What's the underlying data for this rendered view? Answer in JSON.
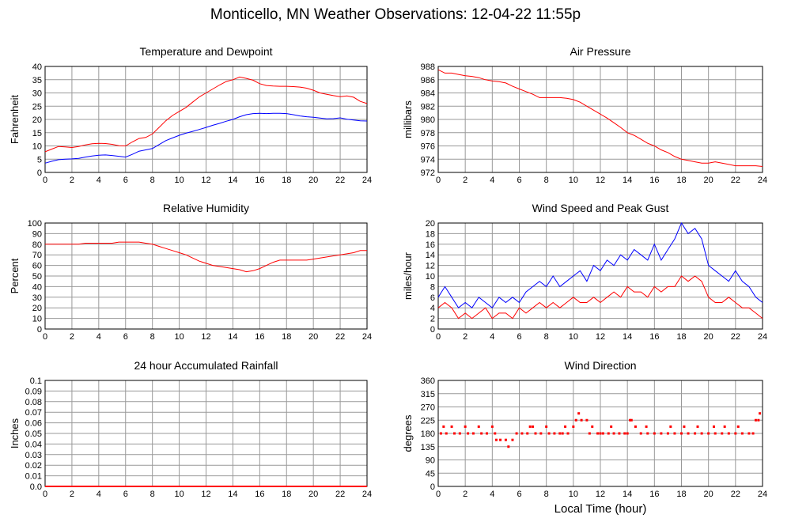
{
  "page_title": "Monticello, MN Weather Observations: 12-04-22 11:55p",
  "xlabel": "Local Time (hour)",
  "colors": {
    "red": "#ff0000",
    "blue": "#0000ff",
    "grid": "#999999"
  },
  "chart_data": [
    {
      "id": "temp",
      "type": "line",
      "title": "Temperature and Dewpoint",
      "ylabel": "Fahrenheit",
      "xlim": [
        0,
        24
      ],
      "ylim": [
        0,
        40
      ],
      "x_ticks": [
        0,
        2,
        4,
        6,
        8,
        10,
        12,
        14,
        16,
        18,
        20,
        22,
        24
      ],
      "y_ticks": [
        0,
        5,
        10,
        15,
        20,
        25,
        30,
        35,
        40
      ],
      "grid": true,
      "series": [
        {
          "color": "#ff0000",
          "x": [
            0,
            0.5,
            1,
            1.5,
            2,
            2.5,
            3,
            3.5,
            4,
            4.5,
            5,
            5.5,
            6,
            6.5,
            7,
            7.5,
            8,
            8.5,
            9,
            9.5,
            10,
            10.5,
            11,
            11.5,
            12,
            12.5,
            13,
            13.5,
            14,
            14.5,
            15,
            15.5,
            16,
            16.5,
            17,
            17.5,
            18,
            18.5,
            19,
            19.5,
            20,
            20.5,
            21,
            21.5,
            22,
            22.5,
            23,
            23.5,
            24
          ],
          "y": [
            7.8,
            8.8,
            9.8,
            9.6,
            9.4,
            9.8,
            10.4,
            10.8,
            11.0,
            10.9,
            10.6,
            10.1,
            10.0,
            11.5,
            12.8,
            13.2,
            14.5,
            17.0,
            19.5,
            21.5,
            23.0,
            24.5,
            26.5,
            28.5,
            30.0,
            31.5,
            33.0,
            34.3,
            35.0,
            36.0,
            35.5,
            34.8,
            33.5,
            32.8,
            32.6,
            32.5,
            32.5,
            32.4,
            32.2,
            31.8,
            31.0,
            30.0,
            29.5,
            29.0,
            28.6,
            28.9,
            28.4,
            26.8,
            26.0
          ]
        },
        {
          "color": "#0000ff",
          "x": [
            0,
            0.5,
            1,
            1.5,
            2,
            2.5,
            3,
            3.5,
            4,
            4.5,
            5,
            5.5,
            6,
            6.5,
            7,
            7.5,
            8,
            8.5,
            9,
            9.5,
            10,
            10.5,
            11,
            11.5,
            12,
            12.5,
            13,
            13.5,
            14,
            14.5,
            15,
            15.5,
            16,
            16.5,
            17,
            17.5,
            18,
            18.5,
            19,
            19.5,
            20,
            20.5,
            21,
            21.5,
            22,
            22.5,
            23,
            23.5,
            24
          ],
          "y": [
            3.5,
            4.2,
            4.8,
            5.0,
            5.1,
            5.3,
            5.8,
            6.2,
            6.5,
            6.6,
            6.4,
            6.1,
            5.8,
            6.8,
            8.0,
            8.5,
            9.0,
            10.5,
            12.0,
            13.0,
            14.0,
            14.8,
            15.5,
            16.2,
            17.0,
            17.8,
            18.5,
            19.3,
            20.0,
            21.0,
            21.8,
            22.2,
            22.3,
            22.2,
            22.3,
            22.3,
            22.2,
            21.8,
            21.3,
            21.0,
            20.8,
            20.5,
            20.2,
            20.3,
            20.6,
            20.1,
            19.8,
            19.5,
            19.4
          ]
        }
      ]
    },
    {
      "id": "pressure",
      "type": "line",
      "title": "Air Pressure",
      "ylabel": "millibars",
      "xlim": [
        0,
        24
      ],
      "ylim": [
        972,
        988
      ],
      "x_ticks": [
        0,
        2,
        4,
        6,
        8,
        10,
        12,
        14,
        16,
        18,
        20,
        22,
        24
      ],
      "y_ticks": [
        972,
        974,
        976,
        978,
        980,
        982,
        984,
        986,
        988
      ],
      "grid": true,
      "series": [
        {
          "color": "#ff0000",
          "x": [
            0,
            0.5,
            1,
            1.5,
            2,
            2.5,
            3,
            3.5,
            4,
            4.5,
            5,
            5.5,
            6,
            6.5,
            7,
            7.5,
            8,
            8.5,
            9,
            9.5,
            10,
            10.5,
            11,
            11.5,
            12,
            12.5,
            13,
            13.5,
            14,
            14.5,
            15,
            15.5,
            16,
            16.5,
            17,
            17.5,
            18,
            18.5,
            19,
            19.5,
            20,
            20.5,
            21,
            21.5,
            22,
            22.5,
            23,
            23.5,
            24
          ],
          "y": [
            987.5,
            987.0,
            987.0,
            986.8,
            986.6,
            986.5,
            986.3,
            986.0,
            985.8,
            985.7,
            985.5,
            985.0,
            984.6,
            984.2,
            983.8,
            983.3,
            983.3,
            983.3,
            983.3,
            983.2,
            983.0,
            982.6,
            982.0,
            981.4,
            980.8,
            980.2,
            979.5,
            978.8,
            978.0,
            977.6,
            977.0,
            976.4,
            976.0,
            975.4,
            975.0,
            974.4,
            974.0,
            973.8,
            973.6,
            973.4,
            973.4,
            973.6,
            973.4,
            973.2,
            973.0,
            973.0,
            973.0,
            973.0,
            972.9
          ]
        }
      ]
    },
    {
      "id": "humidity",
      "type": "line",
      "title": "Relative Humidity",
      "ylabel": "Percent",
      "xlim": [
        0,
        24
      ],
      "ylim": [
        0,
        100
      ],
      "x_ticks": [
        0,
        2,
        4,
        6,
        8,
        10,
        12,
        14,
        16,
        18,
        20,
        22,
        24
      ],
      "y_ticks": [
        0,
        10,
        20,
        30,
        40,
        50,
        60,
        70,
        80,
        90,
        100
      ],
      "grid": true,
      "series": [
        {
          "color": "#ff0000",
          "x": [
            0,
            0.5,
            1,
            1.5,
            2,
            2.5,
            3,
            3.5,
            4,
            4.5,
            5,
            5.5,
            6,
            6.5,
            7,
            7.5,
            8,
            8.5,
            9,
            9.5,
            10,
            10.5,
            11,
            11.5,
            12,
            12.5,
            13,
            13.5,
            14,
            14.5,
            15,
            15.5,
            16,
            16.5,
            17,
            17.5,
            18,
            18.5,
            19,
            19.5,
            20,
            20.5,
            21,
            21.5,
            22,
            22.5,
            23,
            23.5,
            24
          ],
          "y": [
            80,
            80,
            80,
            80,
            80,
            80,
            81,
            81,
            81,
            81,
            81,
            82,
            82,
            82,
            82,
            81,
            80,
            78,
            76,
            74,
            72,
            70,
            67,
            64,
            62,
            60,
            59,
            58,
            57,
            56,
            54,
            55,
            57,
            60,
            63,
            65,
            65,
            65,
            65,
            65,
            66,
            67,
            68,
            69,
            70,
            71,
            72,
            74,
            74
          ]
        }
      ]
    },
    {
      "id": "wind",
      "type": "line",
      "title": "Wind Speed and Peak Gust",
      "ylabel": "miles/hour",
      "xlim": [
        0,
        24
      ],
      "ylim": [
        0,
        20
      ],
      "x_ticks": [
        0,
        2,
        4,
        6,
        8,
        10,
        12,
        14,
        16,
        18,
        20,
        22,
        24
      ],
      "y_ticks": [
        0,
        2,
        4,
        6,
        8,
        10,
        12,
        14,
        16,
        18,
        20
      ],
      "grid": true,
      "series": [
        {
          "color": "#0000ff",
          "x": [
            0,
            0.5,
            1,
            1.5,
            2,
            2.5,
            3,
            3.5,
            4,
            4.5,
            5,
            5.5,
            6,
            6.5,
            7,
            7.5,
            8,
            8.5,
            9,
            9.5,
            10,
            10.5,
            11,
            11.5,
            12,
            12.5,
            13,
            13.5,
            14,
            14.5,
            15,
            15.5,
            16,
            16.5,
            17,
            17.5,
            18,
            18.5,
            19,
            19.5,
            20,
            20.5,
            21,
            21.5,
            22,
            22.5,
            23,
            23.5,
            24
          ],
          "y": [
            6,
            8,
            6,
            4,
            5,
            4,
            6,
            5,
            4,
            6,
            5,
            6,
            5,
            7,
            8,
            9,
            8,
            10,
            8,
            9,
            10,
            11,
            9,
            12,
            11,
            13,
            12,
            14,
            13,
            15,
            14,
            13,
            16,
            13,
            15,
            17,
            20,
            18,
            19,
            17,
            12,
            11,
            10,
            9,
            11,
            9,
            8,
            6,
            5
          ]
        },
        {
          "color": "#ff0000",
          "x": [
            0,
            0.5,
            1,
            1.5,
            2,
            2.5,
            3,
            3.5,
            4,
            4.5,
            5,
            5.5,
            6,
            6.5,
            7,
            7.5,
            8,
            8.5,
            9,
            9.5,
            10,
            10.5,
            11,
            11.5,
            12,
            12.5,
            13,
            13.5,
            14,
            14.5,
            15,
            15.5,
            16,
            16.5,
            17,
            17.5,
            18,
            18.5,
            19,
            19.5,
            20,
            20.5,
            21,
            21.5,
            22,
            22.5,
            23,
            23.5,
            24
          ],
          "y": [
            4,
            5,
            4,
            2,
            3,
            2,
            3,
            4,
            2,
            3,
            3,
            2,
            4,
            3,
            4,
            5,
            4,
            5,
            4,
            5,
            6,
            5,
            5,
            6,
            5,
            6,
            7,
            6,
            8,
            7,
            7,
            6,
            8,
            7,
            8,
            8,
            10,
            9,
            10,
            9,
            6,
            5,
            5,
            6,
            5,
            4,
            4,
            3,
            2
          ]
        }
      ]
    },
    {
      "id": "rain",
      "type": "line",
      "title": "24 hour Accumulated Rainfall",
      "ylabel": "Inches",
      "xlim": [
        0,
        24
      ],
      "ylim": [
        0,
        0.1
      ],
      "x_ticks": [
        0,
        2,
        4,
        6,
        8,
        10,
        12,
        14,
        16,
        18,
        20,
        22,
        24
      ],
      "y_ticks": [
        "0.0",
        "0.01",
        "0.02",
        "0.03",
        "0.04",
        "0.05",
        "0.06",
        "0.07",
        "0.08",
        "0.09",
        "0.1"
      ],
      "grid": true,
      "series": [
        {
          "color": "#ff0000",
          "x": [
            0,
            24
          ],
          "y": [
            0,
            0
          ]
        }
      ]
    },
    {
      "id": "direction",
      "type": "scatter",
      "title": "Wind Direction",
      "ylabel": "degrees",
      "xlim": [
        0,
        24
      ],
      "ylim": [
        0,
        360
      ],
      "x_ticks": [
        0,
        2,
        4,
        6,
        8,
        10,
        12,
        14,
        16,
        18,
        20,
        22,
        24
      ],
      "y_ticks": [
        0,
        45,
        90,
        135,
        180,
        225,
        270,
        315,
        360
      ],
      "grid": true,
      "series": [
        {
          "color": "#ff0000",
          "x": [
            0.2,
            0.6,
            1.2,
            1.6,
            2.2,
            2.6,
            3.2,
            3.6,
            4.2,
            4.3,
            4.6,
            5.0,
            5.2,
            5.5,
            5.8,
            6.2,
            6.6,
            7.2,
            7.6,
            8.2,
            8.6,
            9.0,
            9.2,
            9.6,
            10.0,
            10.2,
            10.6,
            11.0,
            11.4,
            11.8,
            12.2,
            12.6,
            13.0,
            13.4,
            13.8,
            14.2,
            14.6,
            15.0,
            15.5,
            16.0,
            16.5,
            17.0,
            17.5,
            18.0,
            18.5,
            19.0,
            19.5,
            20.0,
            20.5,
            21.0,
            21.5,
            22.0,
            22.5,
            23.0,
            23.5,
            23.8,
            0.4,
            1.0,
            2.0,
            3.0,
            4.0,
            6.8,
            7.0,
            8.0,
            9.4,
            10.4,
            11.2,
            12.0,
            12.8,
            14.0,
            14.3,
            15.4,
            17.2,
            18.2,
            19.2,
            20.4,
            21.2,
            22.2,
            23.3,
            23.7
          ],
          "y": [
            180,
            180,
            180,
            180,
            180,
            180,
            180,
            180,
            180,
            158,
            158,
            158,
            135,
            158,
            180,
            180,
            180,
            180,
            180,
            180,
            180,
            180,
            180,
            180,
            203,
            225,
            225,
            225,
            203,
            180,
            180,
            180,
            180,
            180,
            180,
            225,
            203,
            180,
            180,
            180,
            180,
            180,
            180,
            180,
            180,
            180,
            180,
            180,
            180,
            180,
            180,
            180,
            180,
            180,
            225,
            248,
            203,
            203,
            203,
            203,
            203,
            203,
            203,
            203,
            203,
            248,
            180,
            180,
            203,
            180,
            225,
            203,
            203,
            203,
            203,
            203,
            203,
            203,
            180,
            225
          ]
        }
      ]
    }
  ]
}
